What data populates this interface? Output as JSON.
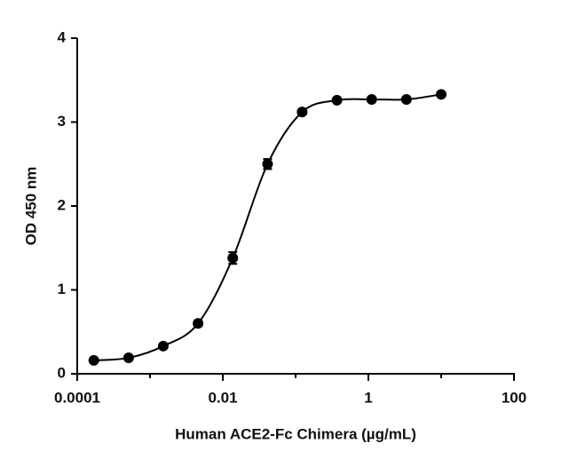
{
  "chart_data": {
    "type": "scatter",
    "x_label": "Human ACE2-Fc Chimera (µg/mL)",
    "y_label": "OD 450 nm",
    "x": [
      0.000169,
      0.000508,
      0.00152,
      0.00457,
      0.0137,
      0.0412,
      0.123,
      0.37,
      1.11,
      3.33,
      10
    ],
    "values": [
      0.16,
      0.19,
      0.33,
      0.6,
      1.38,
      2.5,
      3.12,
      3.26,
      3.27,
      3.27,
      3.33
    ],
    "errors": [
      0.02,
      0.02,
      0.02,
      0.03,
      0.07,
      0.06,
      0.03,
      0.02,
      0.02,
      0.02,
      0.02
    ],
    "color": "#000000",
    "fit_curve": true,
    "xscale": "log",
    "xlim": [
      0.0001,
      100
    ],
    "xticks": [
      0.0001,
      0.01,
      1,
      100
    ],
    "xminorticks": [
      0.001,
      0.1,
      10
    ],
    "ylim": [
      0,
      4
    ],
    "yticks": [
      0,
      1,
      2,
      3,
      4
    ]
  }
}
